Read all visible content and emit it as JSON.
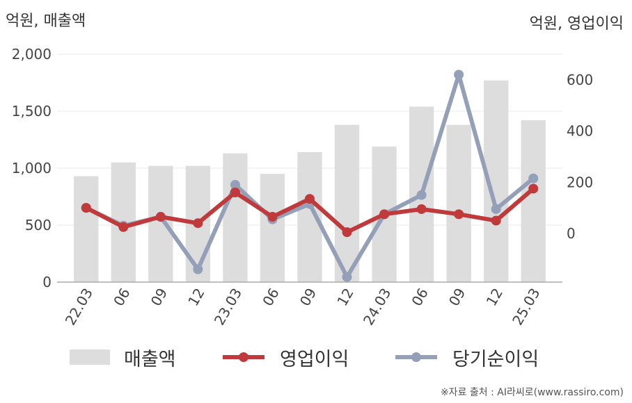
{
  "units": {
    "left": "억원, 매출액",
    "right": "억원, 영업이익"
  },
  "source": "※자료 출처 : AI라씨로(www.rassiro.com)",
  "colors": {
    "revenue": "#dddddd",
    "operating_profit": "#c0393b",
    "net_income": "#94a0b8"
  },
  "chart_data": {
    "type": "bar",
    "categories": [
      "22.03",
      "06",
      "09",
      "12",
      "23.03",
      "06",
      "09",
      "12",
      "24.03",
      "06",
      "09",
      "12",
      "25.03"
    ],
    "left_axis": {
      "ylim": [
        0,
        2000
      ],
      "ticks": [
        "0",
        "500",
        "1,000",
        "1,500",
        "2,000"
      ]
    },
    "right_axis": {
      "ylim": [
        -190,
        700
      ],
      "ticks": [
        "0",
        "200",
        "400",
        "600"
      ]
    },
    "grid": true,
    "legend_position": "bottom",
    "series": [
      {
        "name": "매출액",
        "type": "bar",
        "axis": "left",
        "values": [
          930,
          1050,
          1020,
          1020,
          1130,
          950,
          1140,
          1380,
          1190,
          1540,
          1380,
          1770,
          1420
        ]
      },
      {
        "name": "영업이익",
        "type": "line",
        "axis": "right",
        "values": [
          100,
          25,
          65,
          40,
          160,
          65,
          135,
          5,
          75,
          95,
          75,
          50,
          175
        ]
      },
      {
        "name": "당기순이익",
        "type": "line",
        "axis": "right",
        "values": [
          100,
          30,
          65,
          -140,
          190,
          55,
          115,
          -170,
          75,
          150,
          620,
          95,
          215
        ]
      }
    ]
  }
}
